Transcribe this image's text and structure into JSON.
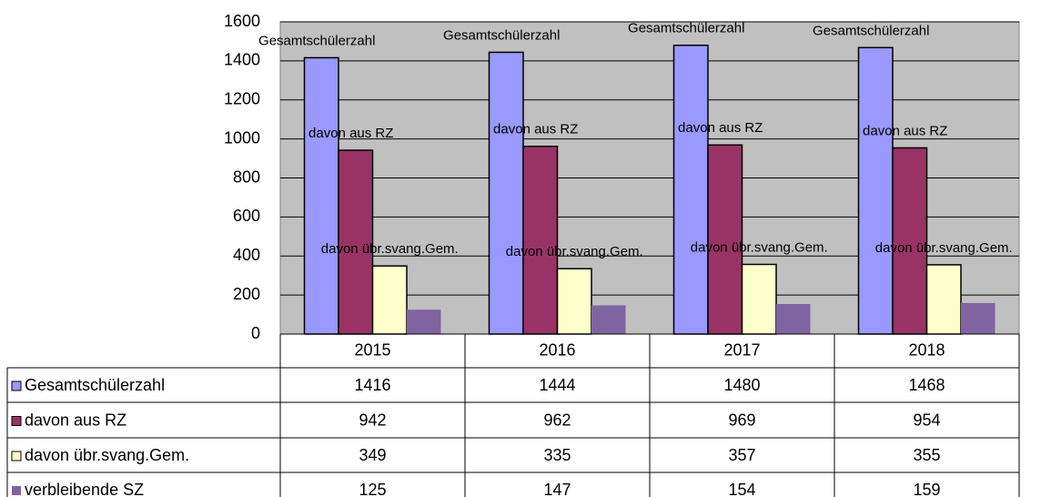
{
  "chart_data": {
    "type": "bar",
    "categories": [
      "2015",
      "2016",
      "2017",
      "2018"
    ],
    "series": [
      {
        "name": "Gesamtschülerzahl",
        "color": "#9999ff",
        "values": [
          1416,
          1444,
          1480,
          1468
        ],
        "outline": true,
        "name_labels": true
      },
      {
        "name": "davon aus RZ",
        "color": "#993366",
        "values": [
          942,
          962,
          969,
          954
        ],
        "outline": true,
        "name_labels": true
      },
      {
        "name": "davon übr.svang.Gem.",
        "color": "#ffffcc",
        "values": [
          349,
          335,
          357,
          355
        ],
        "outline": true,
        "name_labels": true
      },
      {
        "name": "verbleibende SZ",
        "color": "#8064a2",
        "values": [
          125,
          147,
          154,
          159
        ],
        "outline": false,
        "name_labels": false
      }
    ],
    "ylim": [
      0,
      1600
    ],
    "yticks": [
      0,
      200,
      400,
      600,
      800,
      1000,
      1200,
      1400,
      1600
    ],
    "grid": true,
    "plot_background": "#c0c0c0",
    "data_table": true
  }
}
